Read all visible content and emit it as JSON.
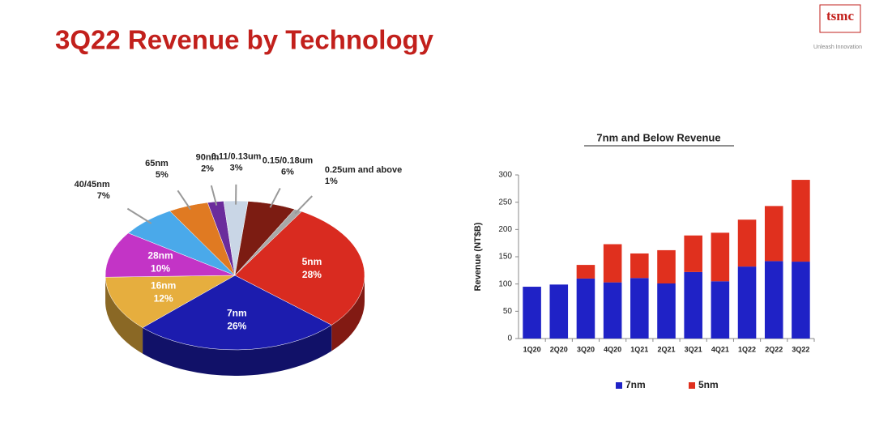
{
  "header": {
    "title": "3Q22 Revenue by Technology",
    "logo": "tsmc",
    "tagline": "Unleash Innovation"
  },
  "chart_data": [
    {
      "type": "pie",
      "categories": [
        "5nm",
        "7nm",
        "16nm",
        "28nm",
        "40/45nm",
        "65nm",
        "90nm",
        "0.11/0.13um",
        "0.15/0.18um",
        "0.25um and above"
      ],
      "values": [
        28,
        26,
        12,
        10,
        7,
        5,
        2,
        3,
        6,
        1
      ],
      "value_labels": [
        "28%",
        "26%",
        "12%",
        "10%",
        "7%",
        "5%",
        "2%",
        "3%",
        "6%",
        "1%"
      ],
      "colors": [
        "#d92b20",
        "#1c1cae",
        "#e6ae3e",
        "#c334c6",
        "#4aa9ea",
        "#e07a22",
        "#6b2c9c",
        "#c9d6e6",
        "#7c1c12",
        "#a8a8a8"
      ]
    },
    {
      "type": "bar",
      "title": "7nm and Below Revenue",
      "ylabel": "Revenue (NT$B)",
      "stacked": true,
      "categories": [
        "1Q20",
        "2Q20",
        "3Q20",
        "4Q20",
        "1Q21",
        "2Q21",
        "3Q21",
        "4Q21",
        "1Q22",
        "2Q22",
        "3Q22"
      ],
      "series": [
        {
          "name": "7nm",
          "color": "#1f22c6",
          "values": [
            95,
            99,
            110,
            103,
            111,
            101,
            122,
            105,
            132,
            142,
            141
          ]
        },
        {
          "name": "5nm",
          "color": "#e0301e",
          "values": [
            0,
            0,
            25,
            70,
            45,
            61,
            67,
            89,
            86,
            101,
            150
          ]
        }
      ],
      "ylim": [
        0,
        300
      ],
      "yticks": [
        0,
        50,
        100,
        150,
        200,
        250,
        300
      ],
      "grid": false,
      "legend": "bottom"
    }
  ]
}
